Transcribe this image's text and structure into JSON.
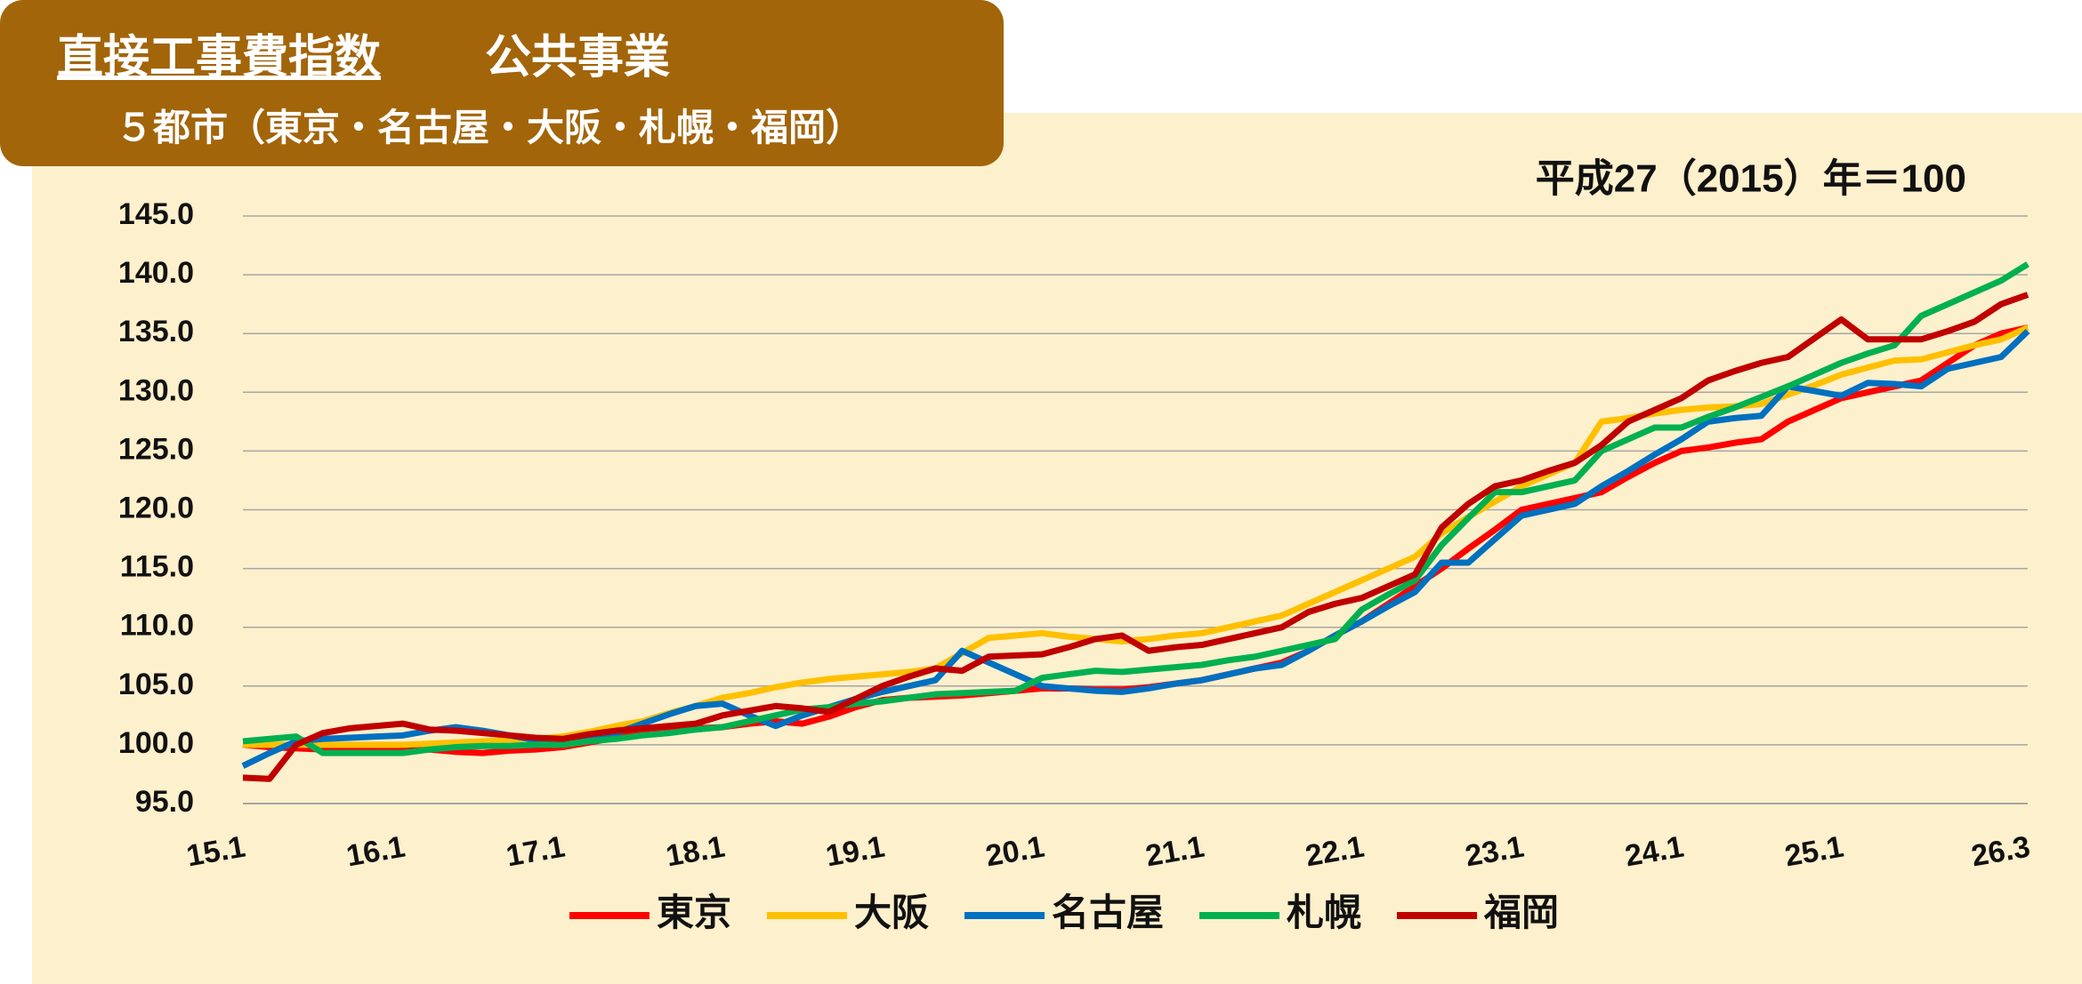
{
  "chart_data": {
    "type": "line",
    "title": "直接工事費指数",
    "title_note": "公共事業",
    "subtitle": "５都市（東京・名古屋・大阪・札幌・福岡）",
    "annotation": "平成27（2015）年＝100",
    "categories": [
      "15.1",
      null,
      null,
      null,
      null,
      null,
      "16.1",
      null,
      null,
      null,
      null,
      null,
      "17.1",
      null,
      null,
      null,
      null,
      null,
      "18.1",
      null,
      null,
      null,
      null,
      null,
      "19.1",
      null,
      null,
      null,
      null,
      null,
      "20.1",
      null,
      null,
      null,
      null,
      null,
      "21.1",
      null,
      null,
      null,
      null,
      null,
      "22.1",
      null,
      null,
      null,
      null,
      null,
      "23.1",
      null,
      null,
      null,
      null,
      null,
      "24.1",
      null,
      null,
      null,
      null,
      null,
      "25.1",
      null,
      null,
      null,
      null,
      null,
      null,
      "26.3"
    ],
    "ylim": [
      95,
      145
    ],
    "yticks": [
      {
        "value": 95,
        "label": "95.0"
      },
      {
        "value": 100,
        "label": "100.0"
      },
      {
        "value": 105,
        "label": "105.0"
      },
      {
        "value": 110,
        "label": "110.0"
      },
      {
        "value": 115,
        "label": "115.0"
      },
      {
        "value": 120,
        "label": "120.0"
      },
      {
        "value": 125,
        "label": "125.0"
      },
      {
        "value": 130,
        "label": "130.0"
      },
      {
        "value": 135,
        "label": "135.0"
      },
      {
        "value": 140,
        "label": "140.0"
      },
      {
        "value": 145,
        "label": "145.0"
      }
    ],
    "grid": true,
    "legend": "bottom",
    "series": [
      {
        "name": "東京",
        "color": "#ff0000",
        "values": [
          100.0,
          99.8,
          99.7,
          99.6,
          99.6,
          99.6,
          99.5,
          99.6,
          99.4,
          99.3,
          99.5,
          99.6,
          99.8,
          100.2,
          100.6,
          101.0,
          101.2,
          101.4,
          101.5,
          101.8,
          102.0,
          101.8,
          102.4,
          103.2,
          103.8,
          104.0,
          104.1,
          104.2,
          104.4,
          104.6,
          104.8,
          104.8,
          104.7,
          104.7,
          104.9,
          105.2,
          105.5,
          106.0,
          106.5,
          107.0,
          108.0,
          109.3,
          110.5,
          112.0,
          113.5,
          115.0,
          116.7,
          118.3,
          120.0,
          120.5,
          121.0,
          121.5,
          122.8,
          124.0,
          125.0,
          125.3,
          125.7,
          126.0,
          127.5,
          128.5,
          129.5,
          130.0,
          130.5,
          131.0,
          132.5,
          134.0,
          135.0,
          135.5
        ]
      },
      {
        "name": "大阪",
        "color": "#ffc000",
        "values": [
          100.0,
          100.0,
          100.0,
          100.0,
          100.0,
          100.0,
          100.0,
          100.1,
          100.2,
          100.3,
          100.4,
          100.5,
          100.7,
          101.1,
          101.6,
          102.0,
          102.7,
          103.3,
          104.0,
          104.4,
          104.9,
          105.3,
          105.6,
          105.8,
          106.0,
          106.2,
          106.5,
          107.8,
          109.1,
          109.3,
          109.5,
          109.2,
          109.0,
          108.8,
          109.0,
          109.3,
          109.5,
          110.0,
          110.5,
          111.0,
          112.0,
          113.0,
          114.0,
          115.0,
          116.0,
          118.0,
          119.4,
          120.7,
          122.0,
          123.0,
          124.0,
          127.5,
          127.8,
          128.2,
          128.5,
          128.7,
          128.8,
          129.0,
          129.8,
          130.6,
          131.5,
          132.1,
          132.7,
          132.8,
          133.4,
          134.0,
          134.5,
          135.5
        ]
      },
      {
        "name": "名古屋",
        "color": "#0070c0",
        "values": [
          98.2,
          99.3,
          100.3,
          100.5,
          100.6,
          100.7,
          100.8,
          101.2,
          101.5,
          101.2,
          100.8,
          100.4,
          100.0,
          100.5,
          101.0,
          101.8,
          102.6,
          103.3,
          103.5,
          102.5,
          101.6,
          102.5,
          103.2,
          103.9,
          104.5,
          105.0,
          105.5,
          108.0,
          107.0,
          106.0,
          105.0,
          104.8,
          104.6,
          104.5,
          104.8,
          105.2,
          105.5,
          106.0,
          106.5,
          106.8,
          108.0,
          109.3,
          110.5,
          111.8,
          113.0,
          115.5,
          115.5,
          117.5,
          119.5,
          120.0,
          120.5,
          122.0,
          123.3,
          124.7,
          126.0,
          127.5,
          127.8,
          128.0,
          130.5,
          130.1,
          129.7,
          130.8,
          130.7,
          130.5,
          132.0,
          132.5,
          133.0,
          135.2
        ]
      },
      {
        "name": "札幌",
        "color": "#00b050",
        "values": [
          100.3,
          100.5,
          100.7,
          99.3,
          99.3,
          99.3,
          99.3,
          99.6,
          99.8,
          99.9,
          99.9,
          100.0,
          100.0,
          100.3,
          100.5,
          100.8,
          101.0,
          101.3,
          101.5,
          102.0,
          102.5,
          103.0,
          103.2,
          103.5,
          103.7,
          104.0,
          104.3,
          104.4,
          104.5,
          104.6,
          105.7,
          106.0,
          106.3,
          106.2,
          106.4,
          106.6,
          106.8,
          107.2,
          107.5,
          108.0,
          108.5,
          109.0,
          111.5,
          112.8,
          114.0,
          117.0,
          119.3,
          121.5,
          121.5,
          122.0,
          122.5,
          125.0,
          126.0,
          127.0,
          127.0,
          127.9,
          128.7,
          129.6,
          130.5,
          131.5,
          132.5,
          133.3,
          134.0,
          136.5,
          137.5,
          138.5,
          139.5,
          140.9
        ]
      },
      {
        "name": "福岡",
        "color": "#c00000",
        "values": [
          97.2,
          97.1,
          100.0,
          101.0,
          101.4,
          101.6,
          101.8,
          101.3,
          101.2,
          101.0,
          100.8,
          100.6,
          100.5,
          100.9,
          101.2,
          101.4,
          101.6,
          101.8,
          102.5,
          102.9,
          103.3,
          103.1,
          102.8,
          103.9,
          105.0,
          105.8,
          106.5,
          106.3,
          107.5,
          107.6,
          107.7,
          108.3,
          109.0,
          109.3,
          108.0,
          108.3,
          108.5,
          109.0,
          109.5,
          110.0,
          111.3,
          112.0,
          112.5,
          113.5,
          114.5,
          118.5,
          120.5,
          122.0,
          122.5,
          123.3,
          124.0,
          125.5,
          127.5,
          128.5,
          129.5,
          131.0,
          131.8,
          132.5,
          133.0,
          134.6,
          136.2,
          134.5,
          134.5,
          134.5,
          135.2,
          136.0,
          137.5,
          138.3
        ]
      }
    ]
  }
}
